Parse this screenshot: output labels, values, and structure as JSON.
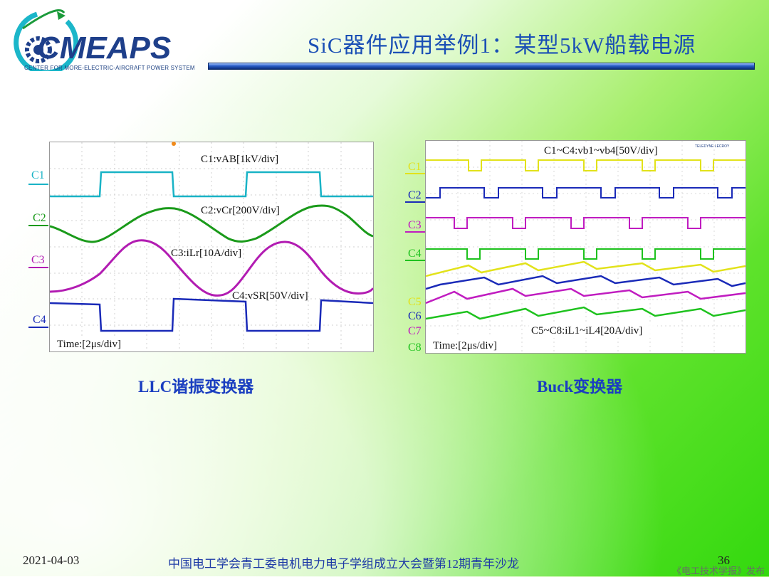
{
  "logo": {
    "text": "CMEAPS",
    "subtitle": "CENTER FOR MORE-ELECTRIC-AIRCRAFT POWER SYSTEM"
  },
  "slide": {
    "title": "SiC器件应用举例1：某型5kW船载电源",
    "page": "36"
  },
  "left_scope": {
    "caption": "LLC谐振变换器",
    "channels": [
      {
        "name": "C1",
        "color": "#19b3c6",
        "annotation": "C1:vAB[1kV/div]"
      },
      {
        "name": "C2",
        "color": "#1a9a1a",
        "annotation": "C2:vCr[200V/div]"
      },
      {
        "name": "C3",
        "color": "#b21cb2",
        "annotation": "C3:iLr[10A/div]"
      },
      {
        "name": "C4",
        "color": "#1a2ab8",
        "annotation": "C4:vSR[50V/div]"
      }
    ],
    "time": "Time:[2μs/div]"
  },
  "right_scope": {
    "caption": "Buck变换器",
    "channels": [
      {
        "name": "C1",
        "color": "#e2e21a"
      },
      {
        "name": "C2",
        "color": "#1a2ab8"
      },
      {
        "name": "C3",
        "color": "#c01cc0"
      },
      {
        "name": "C4",
        "color": "#1ec21e"
      },
      {
        "name": "C5",
        "color": "#e2e21a"
      },
      {
        "name": "C6",
        "color": "#1a2ab8"
      },
      {
        "name": "C7",
        "color": "#c01cc0"
      },
      {
        "name": "C8",
        "color": "#1ec21e"
      }
    ],
    "annotation_top": "C1~C4:vb1~vb4[50V/div]",
    "annotation_bottom": "C5~C8:iL1~iL4[20A/div]",
    "time": "Time:[2μs/div]",
    "brand": "TELEDYNE LECROY"
  },
  "footer": {
    "date": "2021-04-03",
    "event": "中国电工学会青工委电机电力电子学组成立大会暨第12期青年沙龙",
    "watermark": "《电工技术学报》发布"
  }
}
